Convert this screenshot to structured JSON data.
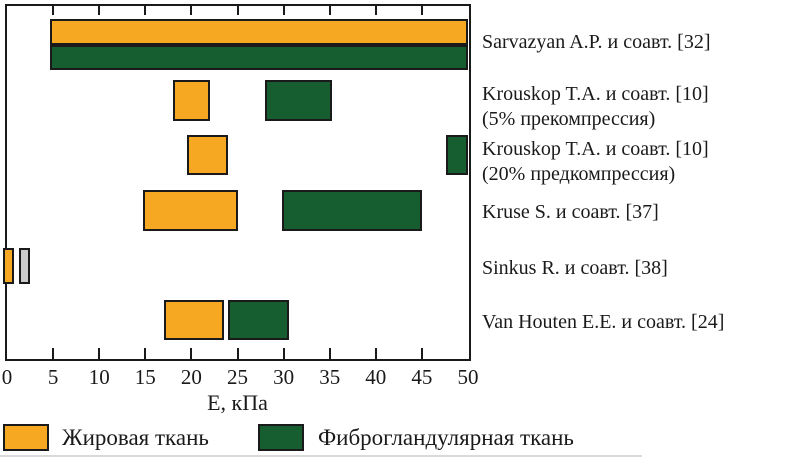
{
  "axis": {
    "label": "E, кПа"
  },
  "legend": {
    "fat": "Жировая ткань",
    "fibro": "Фиброгландулярная ткань"
  },
  "colors": {
    "fat": "#F7A823",
    "fibro": "#165E30",
    "sinkus_fibro": "#CBCBCB",
    "outline": "#1A1A1A"
  },
  "chart_data": {
    "type": "bar",
    "orientation": "horizontal-range",
    "title": "",
    "xlabel": "E, кПа",
    "xlim": [
      0,
      50
    ],
    "xticks": [
      0,
      5,
      10,
      15,
      20,
      25,
      30,
      35,
      40,
      45,
      50
    ],
    "legend_entries": [
      {
        "name": "Жировая ткань",
        "color": "#F7A823"
      },
      {
        "name": "Фиброгландулярная ткань",
        "color": "#165E30"
      }
    ],
    "rows": [
      {
        "label": "Sarvazyan A.P. и соавт. [32]",
        "label_line2": "",
        "fat_range": [
          4.7,
          50
        ],
        "fibro_range": [
          4.7,
          50
        ]
      },
      {
        "label": "Krouskop T.A. и соавт. [10]",
        "label_line2": "(5% прекомпрессия)",
        "fat_range": [
          18,
          22
        ],
        "fibro_range": [
          28,
          35.3
        ]
      },
      {
        "label": "Krouskop T.A. и соавт. [10]",
        "label_line2": "(20% предкомпрессия)",
        "fat_range": [
          19.5,
          24
        ],
        "fibro_range": [
          47.6,
          50
        ]
      },
      {
        "label": "Kruse S. и соавт. [37]",
        "label_line2": "",
        "fat_range": [
          14.7,
          25
        ],
        "fibro_range": [
          29.8,
          45
        ]
      },
      {
        "label": "Sinkus R. и соавт. [38]",
        "label_line2": "",
        "fat_range": [
          -0.4,
          0.8
        ],
        "fibro_range": [
          1.3,
          2.5
        ],
        "fibro_color": "#CBCBCB"
      },
      {
        "label": "Van Houten E.E. и соавт. [24]",
        "label_line2": "",
        "fat_range": [
          17,
          23.5
        ],
        "fibro_range": [
          24,
          30.6
        ]
      }
    ]
  }
}
